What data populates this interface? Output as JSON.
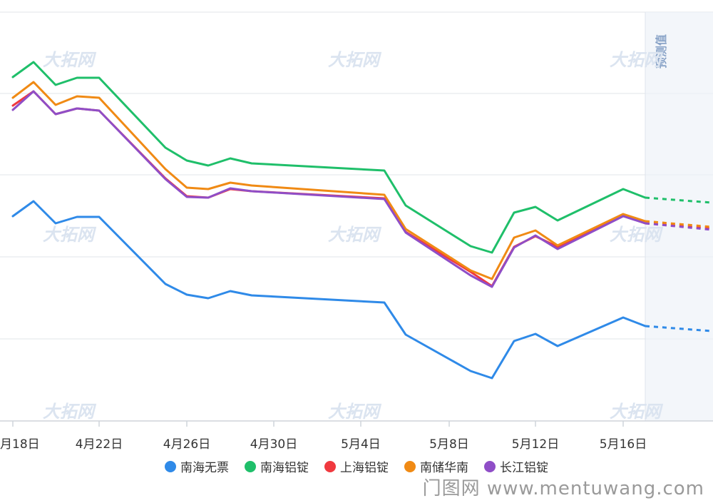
{
  "chart_data": {
    "type": "line",
    "x": [
      "4月18日",
      "4月19日",
      "4月20日",
      "4月21日",
      "4月22日",
      "4月25日",
      "4月26日",
      "4月27日",
      "4月28日",
      "4月29日",
      "5月5日",
      "5月6日",
      "5月9日",
      "5月10日",
      "5月11日",
      "5月12日",
      "5月13日",
      "5月16日",
      "5月17日",
      "5月18日",
      "5月19日"
    ],
    "tick_labels": [
      "月18日",
      "4月22日",
      "4月26日",
      "4月30日",
      "5月4日",
      "5月8日",
      "5月12日",
      "5月16日"
    ],
    "forecast_label": "预测值",
    "grid": true,
    "legend_position": "bottom",
    "series": [
      {
        "name": "南海无票",
        "color": "#2f8ae8",
        "values": [
          303,
          282,
          313,
          304,
          304,
          398,
          413,
          418,
          408,
          414,
          424,
          469,
          520,
          530,
          478,
          468,
          485,
          445,
          457,
          null,
          464
        ],
        "forecast_from": 18
      },
      {
        "name": "南海铝锭",
        "color": "#1fbf6a",
        "values": [
          108,
          87,
          119,
          109,
          109,
          207,
          225,
          232,
          222,
          229,
          239,
          288,
          345,
          354,
          298,
          290,
          309,
          265,
          277,
          null,
          284
        ],
        "forecast_from": 18
      },
      {
        "name": "上海铝锭",
        "color": "#f0393f",
        "values": [
          148,
          128,
          160,
          152,
          155,
          250,
          275,
          277,
          265,
          268,
          278,
          325,
          381,
          401,
          346,
          331,
          346,
          302,
          313,
          null,
          320
        ],
        "forecast_from": 18
      },
      {
        "name": "南储华南",
        "color": "#f08a14",
        "values": [
          137,
          115,
          147,
          135,
          137,
          237,
          263,
          265,
          256,
          260,
          273,
          321,
          379,
          391,
          333,
          323,
          344,
          300,
          310,
          null,
          318
        ],
        "forecast_from": 18
      },
      {
        "name": "长江铝锭",
        "color": "#8f4ec7",
        "values": [
          154,
          128,
          160,
          152,
          155,
          251,
          276,
          277,
          264,
          268,
          279,
          326,
          386,
          402,
          347,
          330,
          349,
          303,
          313,
          null,
          322
        ],
        "forecast_from": 18
      }
    ]
  },
  "watermark": {
    "brand": "大拓网",
    "site": "门图网 www.mentuwang.com"
  }
}
